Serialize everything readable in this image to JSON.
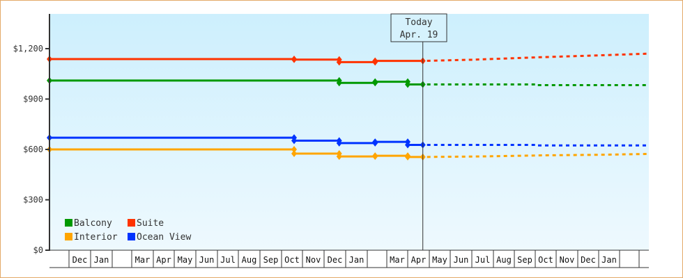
{
  "chart_data": {
    "type": "line",
    "title": "",
    "xlabel": "",
    "ylabel": "",
    "ylim": [
      0,
      1400
    ],
    "y_ticks": [
      "$0",
      "$300",
      "$600",
      "$900",
      "$1,200"
    ],
    "y_tick_values": [
      0,
      300,
      600,
      900,
      1200
    ],
    "x_tick_labels": [
      "",
      "Dec",
      "Jan",
      "",
      "Mar",
      "Apr",
      "May",
      "Jun",
      "Jul",
      "Aug",
      "Sep",
      "Oct",
      "Nov",
      "Dec",
      "Jan",
      "",
      "Mar",
      "Apr",
      "May",
      "Jun",
      "Jul",
      "Aug",
      "Sep",
      "Oct",
      "Nov",
      "Dec",
      "Jan",
      "",
      ""
    ],
    "today_marker": {
      "line1": "Today",
      "line2": "Apr. 19"
    },
    "grid": false,
    "legend_position": "lower-left",
    "series": [
      {
        "name": "Suite",
        "color": "#ff3300",
        "historical": [
          [
            0,
            1138
          ],
          [
            11.6,
            1138
          ],
          [
            11.6,
            1135
          ],
          [
            13.7,
            1135
          ],
          [
            13.7,
            1120
          ],
          [
            15.4,
            1120
          ],
          [
            15.4,
            1127
          ],
          [
            17.7,
            1127
          ]
        ],
        "forecast": [
          [
            17.7,
            1127
          ],
          [
            20,
            1134
          ],
          [
            23,
            1148
          ],
          [
            26,
            1160
          ],
          [
            28.8,
            1170
          ]
        ]
      },
      {
        "name": "Balcony",
        "color": "#009900",
        "historical": [
          [
            0,
            1010
          ],
          [
            13.7,
            1010
          ],
          [
            13.7,
            996
          ],
          [
            15.4,
            996
          ],
          [
            15.4,
            1003
          ],
          [
            17,
            1003
          ],
          [
            17,
            987
          ],
          [
            17.7,
            987
          ]
        ],
        "forecast": [
          [
            17.7,
            987
          ],
          [
            23,
            987
          ],
          [
            23,
            983
          ],
          [
            28.8,
            983
          ]
        ]
      },
      {
        "name": "Ocean View",
        "color": "#0033ff",
        "historical": [
          [
            0,
            670
          ],
          [
            11.6,
            670
          ],
          [
            11.6,
            652
          ],
          [
            13.7,
            652
          ],
          [
            13.7,
            638
          ],
          [
            15.4,
            638
          ],
          [
            15.4,
            645
          ],
          [
            17,
            645
          ],
          [
            17,
            627
          ],
          [
            17.7,
            627
          ]
        ],
        "forecast": [
          [
            17.7,
            627
          ],
          [
            23,
            627
          ],
          [
            23,
            624
          ],
          [
            28.8,
            624
          ]
        ]
      },
      {
        "name": "Interior",
        "color": "#ffa500",
        "historical": [
          [
            0,
            600
          ],
          [
            11.6,
            600
          ],
          [
            11.6,
            575
          ],
          [
            13.7,
            575
          ],
          [
            13.7,
            558
          ],
          [
            15.4,
            558
          ],
          [
            15.4,
            562
          ],
          [
            17,
            562
          ],
          [
            17,
            555
          ],
          [
            17.7,
            555
          ]
        ],
        "forecast": [
          [
            17.7,
            555
          ],
          [
            20.3,
            558
          ],
          [
            23.5,
            565
          ],
          [
            26,
            568
          ],
          [
            28.8,
            573
          ]
        ]
      }
    ]
  },
  "legend": {
    "items": [
      {
        "label": "Balcony",
        "color": "#009900"
      },
      {
        "label": "Suite",
        "color": "#ff3300"
      },
      {
        "label": "Interior",
        "color": "#ffa500"
      },
      {
        "label": "Ocean View",
        "color": "#0033ff"
      }
    ]
  }
}
